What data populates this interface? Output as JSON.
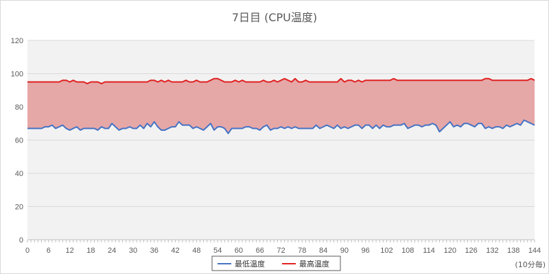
{
  "chart_data": {
    "type": "line",
    "title": "7日目 (CPU温度)",
    "x_unit_label": "(10分毎)",
    "xlim": [
      0,
      144
    ],
    "ylim": [
      0,
      120
    ],
    "y_ticks": [
      0,
      20,
      40,
      60,
      80,
      100,
      120
    ],
    "x_ticks": [
      0,
      6,
      12,
      18,
      24,
      30,
      36,
      42,
      48,
      54,
      60,
      66,
      72,
      78,
      84,
      90,
      96,
      102,
      108,
      114,
      120,
      126,
      132,
      138,
      144
    ],
    "grid": true,
    "legend_position": "bottom",
    "fill_between_series": true,
    "fill_color": "#e6a7a7",
    "series": [
      {
        "name": "最低温度",
        "color": "#4472c4",
        "values": [
          67,
          67,
          67,
          67,
          67,
          68,
          68,
          69,
          67,
          68,
          69,
          67,
          66,
          67,
          68,
          66,
          67,
          67,
          67,
          67,
          66,
          68,
          67,
          67,
          70,
          68,
          66,
          67,
          67,
          68,
          67,
          67,
          69,
          67,
          70,
          68,
          71,
          68,
          66,
          66,
          67,
          68,
          68,
          71,
          69,
          69,
          69,
          67,
          68,
          67,
          66,
          68,
          70,
          66,
          68,
          68,
          67,
          64,
          67,
          67,
          67,
          67,
          68,
          68,
          67,
          67,
          66,
          68,
          69,
          66,
          67,
          67,
          68,
          67,
          68,
          67,
          68,
          67,
          67,
          67,
          67,
          67,
          69,
          67,
          68,
          69,
          68,
          67,
          69,
          67,
          68,
          67,
          68,
          69,
          69,
          67,
          69,
          69,
          67,
          69,
          67,
          69,
          68,
          68,
          69,
          69,
          69,
          70,
          67,
          68,
          69,
          69,
          68,
          69,
          69,
          70,
          69,
          65,
          67,
          69,
          71,
          68,
          69,
          68,
          70,
          70,
          69,
          68,
          70,
          70,
          67,
          68,
          67,
          68,
          68,
          67,
          69,
          68,
          69,
          70,
          69,
          72,
          71,
          70,
          69
        ]
      },
      {
        "name": "最高温度",
        "color": "#e02020",
        "values": [
          95,
          95,
          95,
          95,
          95,
          95,
          95,
          95,
          95,
          95,
          96,
          96,
          95,
          96,
          95,
          95,
          95,
          94,
          95,
          95,
          95,
          94,
          95,
          95,
          95,
          95,
          95,
          95,
          95,
          95,
          95,
          95,
          95,
          95,
          95,
          96,
          96,
          95,
          96,
          95,
          96,
          95,
          95,
          95,
          95,
          96,
          95,
          95,
          96,
          95,
          95,
          95,
          96,
          97,
          97,
          96,
          95,
          95,
          95,
          96,
          95,
          96,
          95,
          95,
          95,
          95,
          95,
          96,
          95,
          95,
          96,
          95,
          96,
          97,
          96,
          95,
          97,
          95,
          95,
          96,
          95,
          95,
          95,
          95,
          95,
          95,
          95,
          95,
          95,
          97,
          95,
          96,
          96,
          95,
          96,
          95,
          96,
          96,
          96,
          96,
          96,
          96,
          96,
          96,
          97,
          96,
          96,
          96,
          96,
          96,
          96,
          96,
          96,
          96,
          96,
          96,
          96,
          96,
          96,
          96,
          96,
          96,
          96,
          96,
          96,
          96,
          96,
          96,
          96,
          96,
          97,
          97,
          96,
          96,
          96,
          96,
          96,
          96,
          96,
          96,
          96,
          96,
          96,
          97,
          96
        ]
      }
    ]
  }
}
